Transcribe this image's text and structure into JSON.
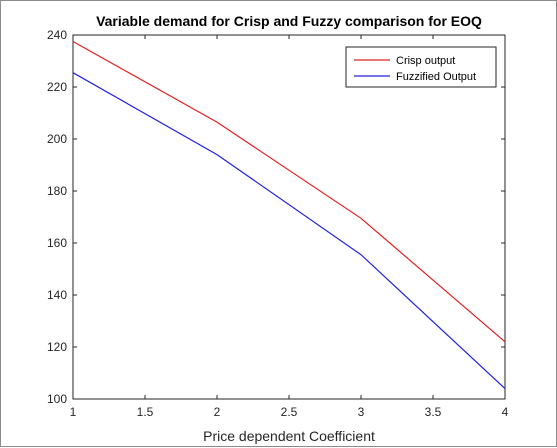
{
  "chart_data": {
    "type": "line",
    "title": "Variable demand for Crisp and Fuzzy comparison for EOQ",
    "xlabel": "Price dependent Coefficient",
    "ylabel": "",
    "xlim": [
      1,
      4
    ],
    "ylim": [
      100,
      240
    ],
    "xticks": [
      1,
      1.5,
      2,
      2.5,
      3,
      3.5,
      4
    ],
    "xtick_labels": [
      "1",
      "1.5",
      "2",
      "2.5",
      "3",
      "3.5",
      "4"
    ],
    "yticks": [
      100,
      120,
      140,
      160,
      180,
      200,
      220,
      240
    ],
    "ytick_labels": [
      "100",
      "120",
      "140",
      "160",
      "180",
      "200",
      "220",
      "240"
    ],
    "grid": false,
    "legend_position": "top-right",
    "series": [
      {
        "name": "Crisp output",
        "color": "#e02020",
        "x": [
          1,
          2,
          3,
          4
        ],
        "y": [
          237.5,
          206.5,
          169.5,
          122
        ]
      },
      {
        "name": "Fuzzified Output",
        "color": "#2020e0",
        "x": [
          1,
          2,
          3,
          4
        ],
        "y": [
          225.5,
          194,
          155.5,
          104
        ]
      }
    ]
  }
}
